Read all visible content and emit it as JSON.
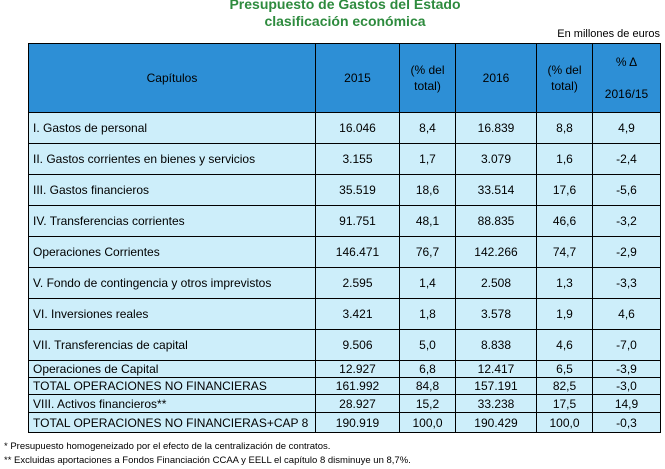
{
  "title_line1": "Presupuesto de Gastos del Estado",
  "title_line2": "clasificación económica",
  "units": "En millones de euros",
  "headers": {
    "capitulos": "Capítulos",
    "y2015": "2015",
    "pct1_a": "(% del",
    "pct1_b": "total)",
    "y2016": "2016",
    "pct2_a": "(% del",
    "pct2_b": "total)",
    "delta_a": "% Δ",
    "delta_b": "2016/15"
  },
  "rows": [
    {
      "label": "I.    Gastos de personal",
      "v2015": "16.046",
      "p2015": "8,4",
      "v2016": "16.839",
      "p2016": "8,8",
      "delta": "4,9"
    },
    {
      "label": "II.   Gastos corrientes en bienes y servicios",
      "v2015": "3.155",
      "p2015": "1,7",
      "v2016": "3.079",
      "p2016": "1,6",
      "delta": "-2,4"
    },
    {
      "label": "III.  Gastos financieros",
      "v2015": "35.519",
      "p2015": "18,6",
      "v2016": "33.514",
      "p2016": "17,6",
      "delta": "-5,6"
    },
    {
      "label": "IV.  Transferencias corrientes",
      "v2015": "91.751",
      "p2015": "48,1",
      "v2016": "88.835",
      "p2016": "46,6",
      "delta": "-3,2"
    },
    {
      "label": "Operaciones Corrientes",
      "v2015": "146.471",
      "p2015": "76,7",
      "v2016": "142.266",
      "p2016": "74,7",
      "delta": "-2,9"
    },
    {
      "label": "V.    Fondo de contingencia y otros imprevistos",
      "v2015": "2.595",
      "p2015": "1,4",
      "v2016": "2.508",
      "p2016": "1,3",
      "delta": "-3,3"
    },
    {
      "label": "VI.   Inversiones reales",
      "v2015": "3.421",
      "p2015": "1,8",
      "v2016": "3.578",
      "p2016": "1,9",
      "delta": "4,6"
    },
    {
      "label": "VII.  Transferencias de capital",
      "v2015": "9.506",
      "p2015": "5,0",
      "v2016": "8.838",
      "p2016": "4,6",
      "delta": "-7,0"
    },
    {
      "label": "Operaciones de Capital",
      "v2015": "12.927",
      "p2015": "6,8",
      "v2016": "12.417",
      "p2016": "6,5",
      "delta": "-3,9"
    },
    {
      "label": "TOTAL OPERACIONES NO FINANCIERAS",
      "v2015": "161.992",
      "p2015": "84,8",
      "v2016": "157.191",
      "p2016": "82,5",
      "delta": "-3,0"
    },
    {
      "label": "VIII.  Activos financieros**",
      "v2015": "28.927",
      "p2015": "15,2",
      "v2016": "33.238",
      "p2016": "17,5",
      "delta": "14,9"
    },
    {
      "label": "TOTAL OPERACIONES NO  FINANCIERAS+CAP 8",
      "v2015": "190.919",
      "p2015": "100,0",
      "v2016": "190.429",
      "p2016": "100,0",
      "delta": "-0,3"
    }
  ],
  "footnote1": "* Presupuesto homogeneizado por el efecto de la centralización de contratos.",
  "footnote2": "** Excluidas aportaciones a Fondos Financiación CCAA y EELL el capítulo 8 disminuye un 8,7%."
}
